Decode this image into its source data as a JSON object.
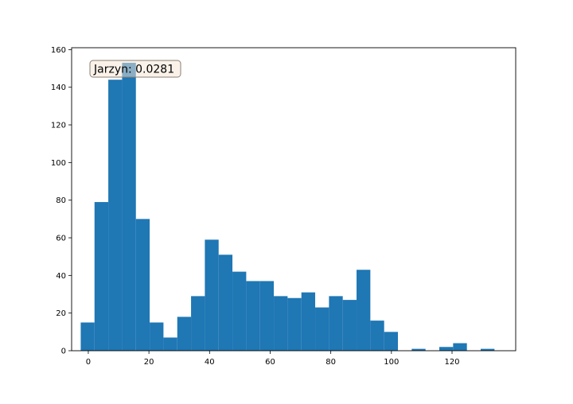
{
  "chart_data": {
    "type": "bar",
    "title": "",
    "xlabel": "",
    "ylabel": "",
    "xlim": [
      -5.5,
      141
    ],
    "ylim": [
      0,
      161
    ],
    "xticks": [
      0,
      20,
      40,
      60,
      80,
      100,
      120
    ],
    "yticks": [
      0,
      20,
      40,
      60,
      80,
      100,
      120,
      140,
      160
    ],
    "bin_width": 4.55,
    "bin_start": -2.5,
    "counts": [
      15,
      79,
      144,
      153,
      70,
      15,
      7,
      18,
      29,
      59,
      51,
      42,
      37,
      37,
      29,
      28,
      31,
      23,
      29,
      27,
      43,
      16,
      10,
      0,
      1,
      0,
      2,
      4,
      0,
      1
    ],
    "bar_color": "#1f77b4",
    "annotation": {
      "text": "Jarzyn: 0.0281",
      "background": "#f5e6d3",
      "border": "#8a7f72"
    },
    "grid": false
  }
}
